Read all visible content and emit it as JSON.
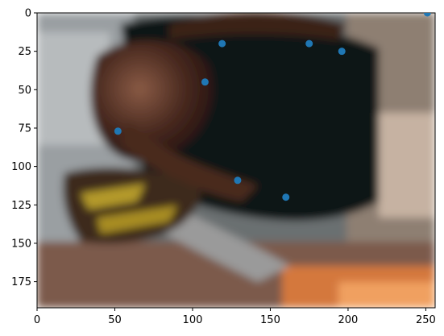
{
  "chart_data": {
    "type": "scatter",
    "title": "",
    "xlabel": "",
    "ylabel": "",
    "xlim": [
      0,
      256
    ],
    "ylim": [
      192,
      0
    ],
    "x_ticks": [
      0,
      50,
      100,
      150,
      200,
      250
    ],
    "y_ticks": [
      0,
      25,
      50,
      75,
      100,
      125,
      150,
      175
    ],
    "x_tick_labels": [
      "0",
      "50",
      "100",
      "150",
      "200",
      "250"
    ],
    "y_tick_labels": [
      "0",
      "25",
      "50",
      "75",
      "100",
      "125",
      "150",
      "175"
    ],
    "grid": false,
    "background": "blurred photo of a person bending forward",
    "marker_color": "#1f77b4",
    "series": [
      {
        "points": [
          {
            "x": 251,
            "y": 0
          },
          {
            "x": 119,
            "y": 20
          },
          {
            "x": 175,
            "y": 20
          },
          {
            "x": 196,
            "y": 25
          },
          {
            "x": 108,
            "y": 45
          },
          {
            "x": 52,
            "y": 77
          },
          {
            "x": 129,
            "y": 109
          },
          {
            "x": 160,
            "y": 120
          }
        ]
      }
    ]
  }
}
